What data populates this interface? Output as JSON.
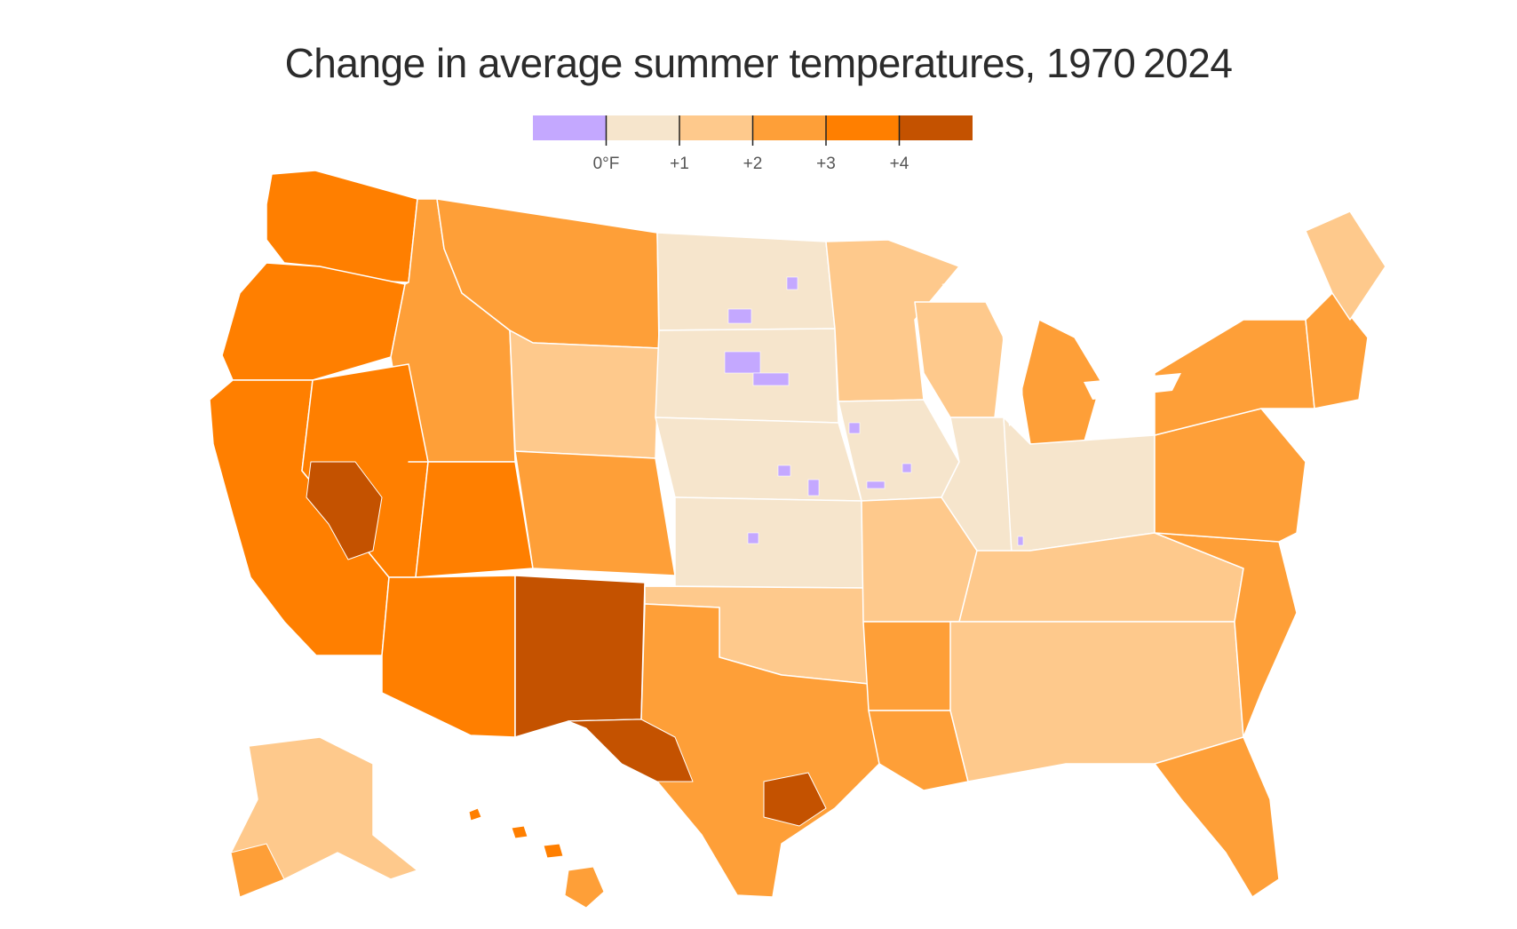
{
  "title": "Change in average summer temperatures, 1970 2024",
  "legend": {
    "bins": [
      {
        "color": "#c4a8ff"
      },
      {
        "color": "#f6e5cc"
      },
      {
        "color": "#fec98c"
      },
      {
        "color": "#fe9f38"
      },
      {
        "color": "#ff7f00"
      },
      {
        "color": "#c45200"
      }
    ],
    "ticks": [
      {
        "label": "0°F"
      },
      {
        "label": "+1"
      },
      {
        "label": "+2"
      },
      {
        "label": "+3"
      },
      {
        "label": "+4"
      }
    ]
  }
}
